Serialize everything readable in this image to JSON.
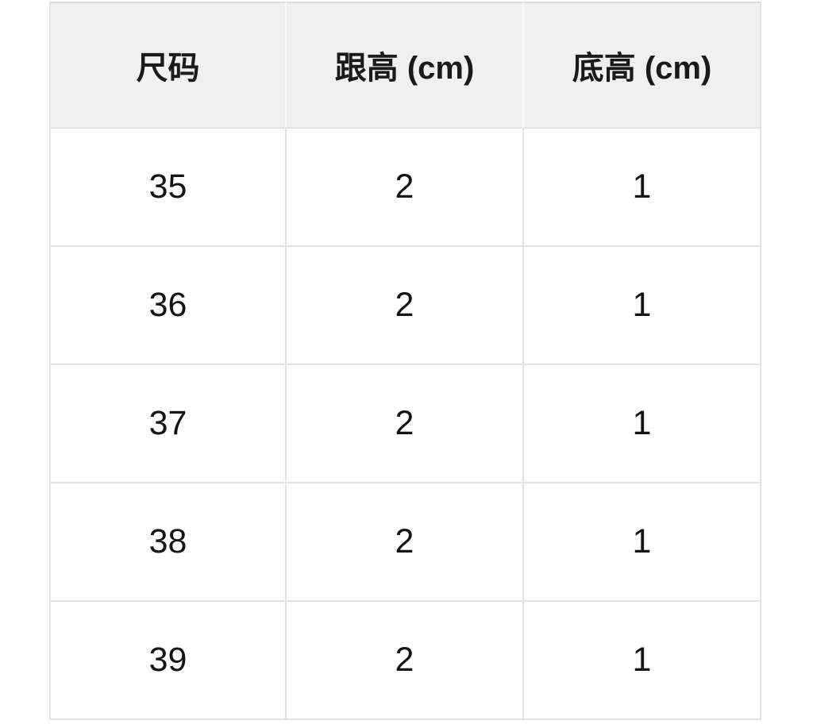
{
  "chart_data": {
    "type": "table",
    "columns": [
      "尺码",
      "跟高 (cm)",
      "底高 (cm)"
    ],
    "rows": [
      [
        "35",
        "2",
        "1"
      ],
      [
        "36",
        "2",
        "1"
      ],
      [
        "37",
        "2",
        "1"
      ],
      [
        "38",
        "2",
        "1"
      ],
      [
        "39",
        "2",
        "1"
      ]
    ]
  },
  "colors": {
    "page_bg": "#ffffff",
    "header_bg": "#f0f0f0",
    "grid_border": "#e2e2e2",
    "header_divider": "#fafafa",
    "text": "#1a1a1a"
  }
}
